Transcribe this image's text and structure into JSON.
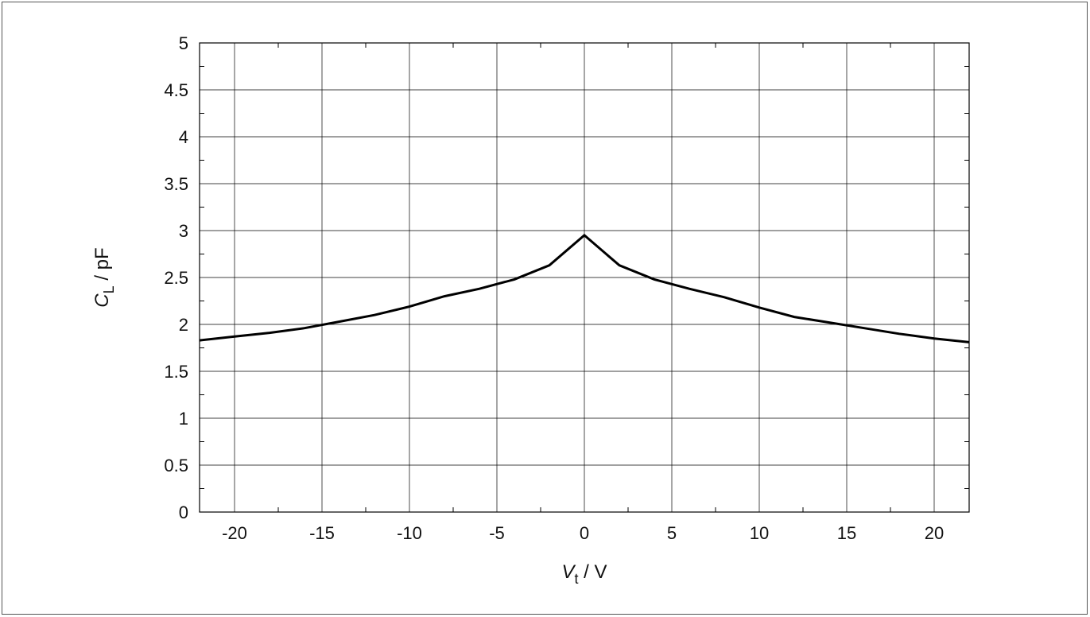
{
  "chart_data": {
    "type": "line",
    "xlabel": {
      "symbol": "V",
      "subscript": "t",
      "unit": " / V"
    },
    "ylabel": {
      "symbol": "C",
      "subscript": "L",
      "unit": " / pF"
    },
    "xlim": [
      -22,
      22
    ],
    "ylim": [
      0,
      5
    ],
    "x_ticks": [
      -20,
      -15,
      -10,
      -5,
      0,
      5,
      10,
      15,
      20
    ],
    "x_tick_labels": [
      "-20",
      "-15",
      "-10",
      "-5",
      "0",
      "5",
      "10",
      "15",
      "20"
    ],
    "y_ticks": [
      0,
      0.5,
      1,
      1.5,
      2,
      2.5,
      3,
      3.5,
      4,
      4.5,
      5
    ],
    "y_tick_labels": [
      "0",
      "0.5",
      "1",
      "1.5",
      "2",
      "2.5",
      "3",
      "3.5",
      "4",
      "4.5",
      "5"
    ],
    "grid": true,
    "line_color": "#000000",
    "series": [
      {
        "x": [
          -22,
          -20,
          -18,
          -16,
          -14,
          -12,
          -10,
          -8,
          -6,
          -4,
          -2,
          0,
          2,
          4,
          6,
          8,
          10,
          12,
          14,
          16,
          18,
          20,
          22
        ],
        "values": [
          1.83,
          1.87,
          1.91,
          1.96,
          2.03,
          2.1,
          2.19,
          2.3,
          2.38,
          2.48,
          2.63,
          2.95,
          2.63,
          2.48,
          2.38,
          2.29,
          2.18,
          2.08,
          2.02,
          1.96,
          1.9,
          1.85,
          1.81
        ]
      }
    ]
  }
}
